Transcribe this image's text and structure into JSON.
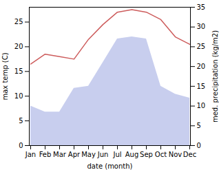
{
  "chart_data": {
    "type": "line",
    "xlabel": "date (month)",
    "ylabel": "max temp (C)",
    "y2label": "med. precipitation (kg/m2)",
    "categories": [
      "Jan",
      "Feb",
      "Mar",
      "Apr",
      "May",
      "Jun",
      "Jul",
      "Aug",
      "Sep",
      "Oct",
      "Nov",
      "Dec"
    ],
    "series": [
      {
        "type": "area",
        "axis": "y2",
        "color": "#c8ceee",
        "values": [
          10.0,
          8.5,
          8.5,
          14.5,
          15.0,
          21.0,
          27.0,
          27.5,
          27.0,
          15.0,
          13.0,
          12.0
        ]
      },
      {
        "type": "line",
        "color": "#cd5c5c",
        "values": [
          16.5,
          18.5,
          18.0,
          17.5,
          21.5,
          24.5,
          27.0,
          27.5,
          27.0,
          25.5,
          22.0,
          20.5
        ]
      }
    ],
    "ylim": [
      0,
      28
    ],
    "yticks": [
      0,
      5,
      10,
      15,
      20,
      25
    ],
    "y2lim": [
      0,
      35
    ],
    "y2ticks": [
      0,
      5,
      10,
      15,
      20,
      25,
      30,
      35
    ],
    "grid": false
  }
}
